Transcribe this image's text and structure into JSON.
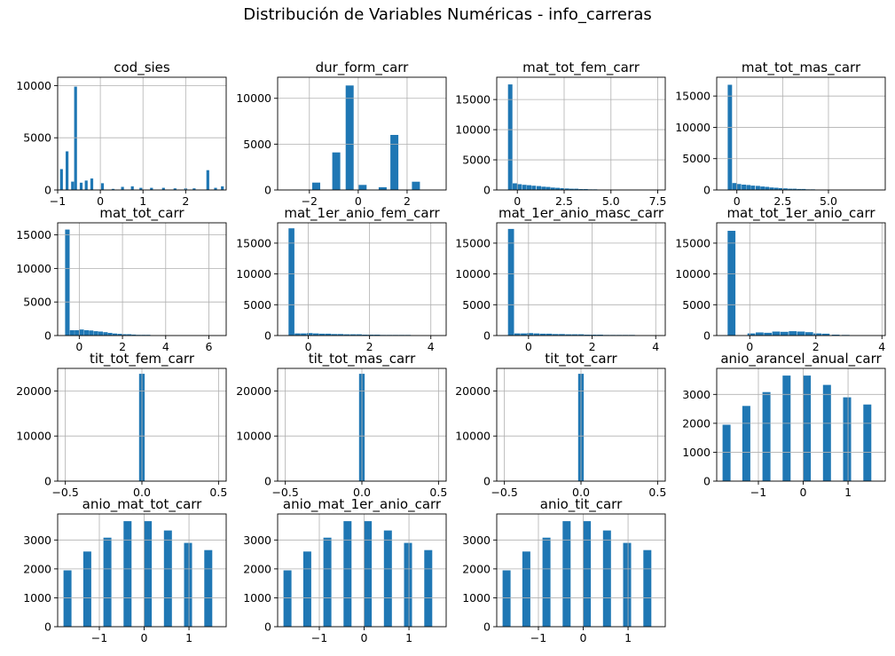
{
  "title": "Distribución de Variables Numéricas - info_carreras",
  "chart_data": [
    {
      "type": "bar",
      "title": "cod_sies",
      "xlim": [
        -1.0,
        2.95
      ],
      "ylim": [
        0,
        10800
      ],
      "xticks": [
        -1,
        0,
        1,
        2
      ],
      "xtick_labels": [
        "−1",
        "0",
        "1",
        "2"
      ],
      "yticks": [
        0,
        5000,
        10000
      ],
      "ytick_labels": [
        "0",
        "5000",
        "10000"
      ],
      "bins": [
        [
          -0.91,
          2000
        ],
        [
          -0.78,
          3700
        ],
        [
          -0.65,
          800
        ],
        [
          -0.58,
          9900
        ],
        [
          -0.45,
          700
        ],
        [
          -0.33,
          900
        ],
        [
          -0.2,
          1100
        ],
        [
          0.05,
          650
        ],
        [
          0.3,
          100
        ],
        [
          0.52,
          300
        ],
        [
          0.75,
          350
        ],
        [
          0.95,
          200
        ],
        [
          1.2,
          200
        ],
        [
          1.48,
          200
        ],
        [
          1.75,
          150
        ],
        [
          2.0,
          150
        ],
        [
          2.2,
          150
        ],
        [
          2.52,
          1900
        ],
        [
          2.7,
          200
        ],
        [
          2.86,
          350
        ]
      ]
    },
    {
      "type": "bar",
      "title": "dur_form_carr",
      "xlim": [
        -3.3,
        3.6
      ],
      "ylim": [
        0,
        12300
      ],
      "xticks": [
        -2,
        0,
        2
      ],
      "xtick_labels": [
        "−2",
        "0",
        "2"
      ],
      "yticks": [
        0,
        5000,
        10000
      ],
      "ytick_labels": [
        "0",
        "5000",
        "10000"
      ],
      "bins": [
        [
          -2.55,
          50
        ],
        [
          -1.72,
          800
        ],
        [
          -0.9,
          4100
        ],
        [
          -0.35,
          11400
        ],
        [
          0.18,
          550
        ],
        [
          1.0,
          300
        ],
        [
          1.48,
          6000
        ],
        [
          2.36,
          900
        ]
      ]
    },
    {
      "type": "bar",
      "title": "mat_tot_fem_carr",
      "xlim": [
        -1.1,
        7.9
      ],
      "ylim": [
        0,
        18700
      ],
      "xticks": [
        0,
        2.5,
        5,
        7.5
      ],
      "xtick_labels": [
        "0",
        "2.5",
        "5.0",
        "7.5"
      ],
      "yticks": [
        0,
        5000,
        10000,
        15000
      ],
      "ytick_labels": [
        "0",
        "5000",
        "10000",
        "15000"
      ],
      "bins": [
        [
          -0.38,
          17500
        ],
        [
          -0.13,
          1100
        ],
        [
          0.12,
          950
        ],
        [
          0.38,
          850
        ],
        [
          0.63,
          800
        ],
        [
          0.88,
          700
        ],
        [
          1.15,
          650
        ],
        [
          1.4,
          550
        ],
        [
          1.65,
          500
        ],
        [
          1.9,
          400
        ],
        [
          2.15,
          350
        ],
        [
          2.4,
          300
        ],
        [
          2.65,
          250
        ],
        [
          2.9,
          200
        ],
        [
          3.15,
          200
        ],
        [
          3.4,
          150
        ],
        [
          3.65,
          150
        ],
        [
          3.9,
          100
        ],
        [
          4.15,
          100
        ]
      ]
    },
    {
      "type": "bar",
      "title": "mat_tot_mas_carr",
      "xlim": [
        -1.1,
        8.1
      ],
      "ylim": [
        0,
        18000
      ],
      "xticks": [
        0,
        2.5,
        5
      ],
      "xtick_labels": [
        "0",
        "2.5",
        "5.0"
      ],
      "yticks": [
        0,
        5000,
        10000,
        15000
      ],
      "ytick_labels": [
        "0",
        "5000",
        "10000",
        "15000"
      ],
      "bins": [
        [
          -0.38,
          16800
        ],
        [
          -0.13,
          1100
        ],
        [
          0.12,
          950
        ],
        [
          0.38,
          850
        ],
        [
          0.63,
          800
        ],
        [
          0.88,
          700
        ],
        [
          1.15,
          650
        ],
        [
          1.4,
          550
        ],
        [
          1.65,
          500
        ],
        [
          1.9,
          400
        ],
        [
          2.15,
          350
        ],
        [
          2.4,
          300
        ],
        [
          2.65,
          250
        ],
        [
          2.9,
          200
        ],
        [
          3.15,
          200
        ],
        [
          3.4,
          150
        ],
        [
          3.65,
          150
        ],
        [
          3.9,
          100
        ],
        [
          4.15,
          100
        ]
      ]
    },
    {
      "type": "bar",
      "title": "mat_tot_carr",
      "xlim": [
        -1.0,
        6.8
      ],
      "ylim": [
        0,
        16800
      ],
      "xticks": [
        0,
        2,
        4,
        6
      ],
      "xtick_labels": [
        "0",
        "2",
        "4",
        "6"
      ],
      "yticks": [
        0,
        5000,
        10000,
        15000
      ],
      "ytick_labels": [
        "0",
        "5000",
        "10000",
        "15000"
      ],
      "bins": [
        [
          -0.55,
          15800
        ],
        [
          -0.33,
          800
        ],
        [
          -0.11,
          800
        ],
        [
          0.11,
          900
        ],
        [
          0.33,
          800
        ],
        [
          0.55,
          750
        ],
        [
          0.77,
          650
        ],
        [
          0.99,
          600
        ],
        [
          1.21,
          500
        ],
        [
          1.43,
          400
        ],
        [
          1.65,
          300
        ],
        [
          1.87,
          250
        ],
        [
          2.09,
          200
        ],
        [
          2.31,
          200
        ],
        [
          2.53,
          150
        ],
        [
          2.75,
          100
        ],
        [
          2.97,
          100
        ],
        [
          3.19,
          100
        ]
      ]
    },
    {
      "type": "bar",
      "title": "mat_1er_anio_fem_carr",
      "xlim": [
        -1.0,
        4.5
      ],
      "ylim": [
        0,
        18300
      ],
      "xticks": [
        0,
        2,
        4
      ],
      "xtick_labels": [
        "0",
        "2",
        "4"
      ],
      "yticks": [
        0,
        5000,
        10000,
        15000
      ],
      "ytick_labels": [
        "0",
        "5000",
        "10000",
        "15000"
      ],
      "bins": [
        [
          -0.55,
          17400
        ],
        [
          -0.35,
          350
        ],
        [
          -0.15,
          350
        ],
        [
          0.05,
          400
        ],
        [
          0.25,
          350
        ],
        [
          0.45,
          300
        ],
        [
          0.65,
          300
        ],
        [
          0.85,
          250
        ],
        [
          1.05,
          250
        ],
        [
          1.25,
          200
        ],
        [
          1.45,
          200
        ],
        [
          1.65,
          200
        ],
        [
          1.85,
          150
        ],
        [
          2.05,
          150
        ],
        [
          2.25,
          150
        ],
        [
          2.45,
          100
        ],
        [
          2.65,
          100
        ],
        [
          2.85,
          100
        ],
        [
          3.05,
          100
        ],
        [
          3.25,
          100
        ]
      ]
    },
    {
      "type": "bar",
      "title": "mat_1er_anio_masc_carr",
      "xlim": [
        -1.0,
        4.3
      ],
      "ylim": [
        0,
        18300
      ],
      "xticks": [
        0,
        2,
        4
      ],
      "xtick_labels": [
        "0",
        "2",
        "4"
      ],
      "yticks": [
        0,
        5000,
        10000,
        15000
      ],
      "ytick_labels": [
        "0",
        "5000",
        "10000",
        "15000"
      ],
      "bins": [
        [
          -0.55,
          17300
        ],
        [
          -0.35,
          350
        ],
        [
          -0.15,
          350
        ],
        [
          0.05,
          400
        ],
        [
          0.25,
          350
        ],
        [
          0.45,
          300
        ],
        [
          0.65,
          300
        ],
        [
          0.85,
          250
        ],
        [
          1.05,
          250
        ],
        [
          1.25,
          200
        ],
        [
          1.45,
          200
        ],
        [
          1.65,
          200
        ],
        [
          1.85,
          150
        ],
        [
          2.05,
          150
        ],
        [
          2.25,
          150
        ],
        [
          2.45,
          100
        ],
        [
          2.65,
          100
        ],
        [
          2.85,
          100
        ],
        [
          3.05,
          100
        ],
        [
          3.25,
          100
        ]
      ]
    },
    {
      "type": "bar",
      "title": "mat_tot_1er_anio_carr",
      "xlim": [
        -1.0,
        4.1
      ],
      "ylim": [
        0,
        18300
      ],
      "xticks": [
        0,
        2,
        4
      ],
      "xtick_labels": [
        "0",
        "2",
        "4"
      ],
      "yticks": [
        0,
        5000,
        10000,
        15000
      ],
      "ytick_labels": [
        "0",
        "5000",
        "10000",
        "15000"
      ],
      "bins": [
        [
          -0.55,
          17000
        ],
        [
          0.05,
          350
        ],
        [
          0.3,
          500
        ],
        [
          0.55,
          450
        ],
        [
          0.8,
          650
        ],
        [
          1.05,
          600
        ],
        [
          1.3,
          700
        ],
        [
          1.55,
          650
        ],
        [
          1.8,
          550
        ],
        [
          2.05,
          350
        ],
        [
          2.3,
          300
        ],
        [
          2.6,
          150
        ],
        [
          2.9,
          100
        ]
      ]
    },
    {
      "type": "bar",
      "title": "tit_tot_fem_carr",
      "xlim": [
        -0.55,
        0.55
      ],
      "ylim": [
        0,
        25000
      ],
      "xticks": [
        -0.5,
        0,
        0.5
      ],
      "xtick_labels": [
        "−0.5",
        "0.0",
        "0.5"
      ],
      "yticks": [
        0,
        10000,
        20000
      ],
      "ytick_labels": [
        "0",
        "10000",
        "20000"
      ],
      "bins": [
        [
          0.0,
          23800
        ]
      ]
    },
    {
      "type": "bar",
      "title": "tit_tot_mas_carr",
      "xlim": [
        -0.55,
        0.55
      ],
      "ylim": [
        0,
        25000
      ],
      "xticks": [
        -0.5,
        0,
        0.5
      ],
      "xtick_labels": [
        "−0.5",
        "0.0",
        "0.5"
      ],
      "yticks": [
        0,
        10000,
        20000
      ],
      "ytick_labels": [
        "0",
        "10000",
        "20000"
      ],
      "bins": [
        [
          0.0,
          23800
        ]
      ]
    },
    {
      "type": "bar",
      "title": "tit_tot_carr",
      "xlim": [
        -0.55,
        0.55
      ],
      "ylim": [
        0,
        25000
      ],
      "xticks": [
        -0.5,
        0,
        0.5
      ],
      "xtick_labels": [
        "−0.5",
        "0.0",
        "0.5"
      ],
      "yticks": [
        0,
        10000,
        20000
      ],
      "ytick_labels": [
        "0",
        "10000",
        "20000"
      ],
      "bins": [
        [
          0.0,
          23800
        ]
      ]
    },
    {
      "type": "bar",
      "title": "anio_arancel_anual_carr",
      "xlim": [
        -1.93,
        1.83
      ],
      "ylim": [
        0,
        3900
      ],
      "xticks": [
        -1,
        0,
        1
      ],
      "xtick_labels": [
        "−1",
        "0",
        "1"
      ],
      "yticks": [
        0,
        1000,
        2000,
        3000
      ],
      "ytick_labels": [
        "0",
        "1000",
        "2000",
        "3000"
      ],
      "bins": [
        [
          -1.71,
          1950
        ],
        [
          -1.27,
          2600
        ],
        [
          -0.82,
          3080
        ],
        [
          -0.37,
          3650
        ],
        [
          0.08,
          3650
        ],
        [
          0.53,
          3330
        ],
        [
          0.98,
          2900
        ],
        [
          1.43,
          2650
        ]
      ]
    },
    {
      "type": "bar",
      "title": "anio_mat_tot_carr",
      "xlim": [
        -1.93,
        1.83
      ],
      "ylim": [
        0,
        3900
      ],
      "xticks": [
        -1,
        0,
        1
      ],
      "xtick_labels": [
        "−1",
        "0",
        "1"
      ],
      "yticks": [
        0,
        1000,
        2000,
        3000
      ],
      "ytick_labels": [
        "0",
        "1000",
        "2000",
        "3000"
      ],
      "bins": [
        [
          -1.71,
          1950
        ],
        [
          -1.27,
          2600
        ],
        [
          -0.82,
          3080
        ],
        [
          -0.37,
          3650
        ],
        [
          0.08,
          3650
        ],
        [
          0.53,
          3330
        ],
        [
          0.98,
          2900
        ],
        [
          1.43,
          2650
        ]
      ]
    },
    {
      "type": "bar",
      "title": "anio_mat_1er_anio_carr",
      "xlim": [
        -1.93,
        1.83
      ],
      "ylim": [
        0,
        3900
      ],
      "xticks": [
        -1,
        0,
        1
      ],
      "xtick_labels": [
        "−1",
        "0",
        "1"
      ],
      "yticks": [
        0,
        1000,
        2000,
        3000
      ],
      "ytick_labels": [
        "0",
        "1000",
        "2000",
        "3000"
      ],
      "bins": [
        [
          -1.71,
          1950
        ],
        [
          -1.27,
          2600
        ],
        [
          -0.82,
          3080
        ],
        [
          -0.37,
          3650
        ],
        [
          0.08,
          3650
        ],
        [
          0.53,
          3330
        ],
        [
          0.98,
          2900
        ],
        [
          1.43,
          2650
        ]
      ]
    },
    {
      "type": "bar",
      "title": "anio_tit_carr",
      "xlim": [
        -1.93,
        1.83
      ],
      "ylim": [
        0,
        3900
      ],
      "xticks": [
        -1,
        0,
        1
      ],
      "xtick_labels": [
        "−1",
        "0",
        "1"
      ],
      "yticks": [
        0,
        1000,
        2000,
        3000
      ],
      "ytick_labels": [
        "0",
        "1000",
        "2000",
        "3000"
      ],
      "bins": [
        [
          -1.71,
          1950
        ],
        [
          -1.27,
          2600
        ],
        [
          -0.82,
          3080
        ],
        [
          -0.37,
          3650
        ],
        [
          0.08,
          3650
        ],
        [
          0.53,
          3330
        ],
        [
          0.98,
          2900
        ],
        [
          1.43,
          2650
        ]
      ]
    }
  ],
  "colors": {
    "bar": "#1f77b4",
    "grid": "#b0b0b0",
    "axis": "#000000"
  }
}
